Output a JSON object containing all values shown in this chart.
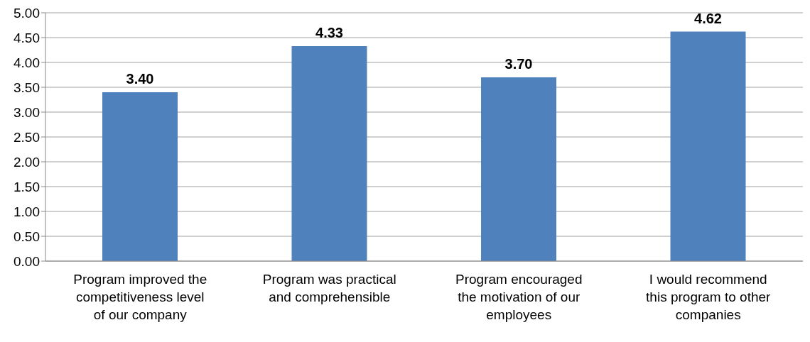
{
  "chart_data": {
    "type": "bar",
    "categories": [
      "Program improved the competitiveness level of our company",
      "Program was practical and comprehensible",
      "Program encouraged the motivation of our employees",
      "I would recommend this program to other companies"
    ],
    "values": [
      3.4,
      4.33,
      3.7,
      4.62
    ],
    "value_labels": [
      "3.40",
      "4.33",
      "3.70",
      "4.62"
    ],
    "color": "#4f81bd",
    "ylim": [
      0,
      5
    ],
    "yticks": [
      {
        "value": 0,
        "label": "0.00"
      },
      {
        "value": 0.5,
        "label": "0.50"
      },
      {
        "value": 1,
        "label": "1.00"
      },
      {
        "value": 1.5,
        "label": "1.50"
      },
      {
        "value": 2,
        "label": "2.00"
      },
      {
        "value": 2.5,
        "label": "2.50"
      },
      {
        "value": 3,
        "label": "3.00"
      },
      {
        "value": 3.5,
        "label": "3.50"
      },
      {
        "value": 4,
        "label": "4.00"
      },
      {
        "value": 4.5,
        "label": "4.50"
      },
      {
        "value": 5,
        "label": "5.00"
      }
    ],
    "grid": "y"
  }
}
